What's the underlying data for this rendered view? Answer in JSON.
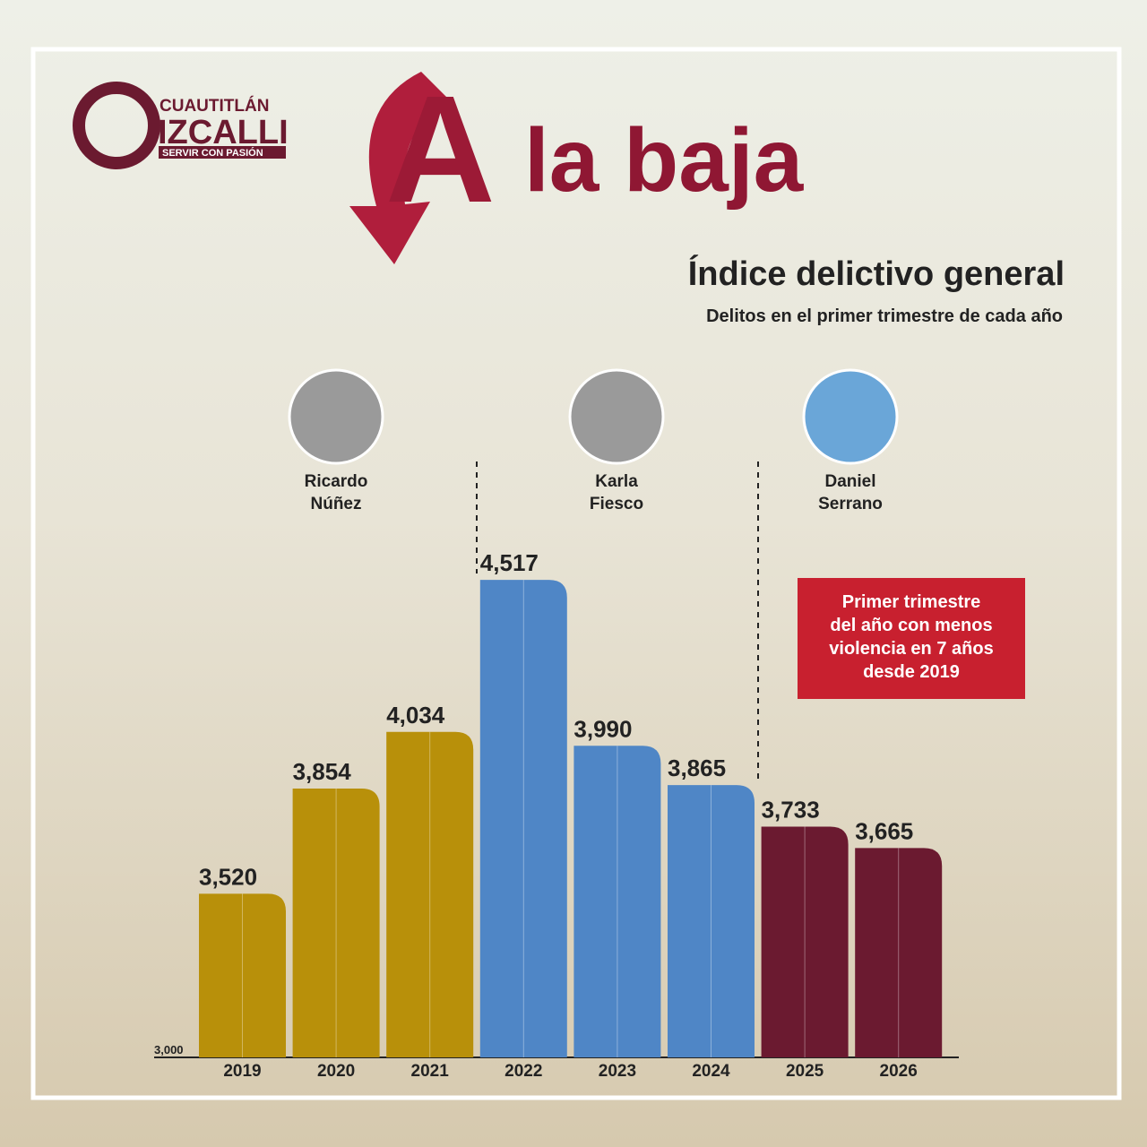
{
  "header": {
    "logo_top": "CUAUTITLÁN",
    "logo_main": "IZCALLI",
    "logo_tagline": "SERVIR CON PASIÓN",
    "headline_letter": "A",
    "headline_rest": "la baja"
  },
  "chart_data": {
    "type": "bar",
    "title": "Índice delictivo general",
    "subtitle": "Delitos en el primer trimestre de cada año",
    "categories": [
      "2019",
      "2020",
      "2021",
      "2022",
      "2023",
      "2024",
      "2025",
      "2026"
    ],
    "values": [
      3520,
      3854,
      4034,
      4517,
      3990,
      3865,
      3733,
      3665
    ],
    "value_labels": [
      "3,520",
      "3,854",
      "4,034",
      "4,517",
      "3,990",
      "3,865",
      "3,733",
      "3,665"
    ],
    "colors": [
      "#b8900a",
      "#b8900a",
      "#b8900a",
      "#4f86c6",
      "#4f86c6",
      "#4f86c6",
      "#6b1a30",
      "#6b1a30"
    ],
    "ylim": [
      3000,
      4600
    ],
    "yticks": [
      {
        "value": 3000,
        "label": "3,000"
      }
    ],
    "administrations": [
      {
        "name": [
          "Ricardo",
          "Núñez"
        ]
      },
      {
        "name": [
          "Karla",
          "Fiesco"
        ]
      },
      {
        "name": [
          "Daniel",
          "Serrano"
        ]
      }
    ],
    "annotation": [
      "Primer trimestre",
      "del año con menos",
      "violencia en 7 años",
      "desde 2019"
    ]
  }
}
